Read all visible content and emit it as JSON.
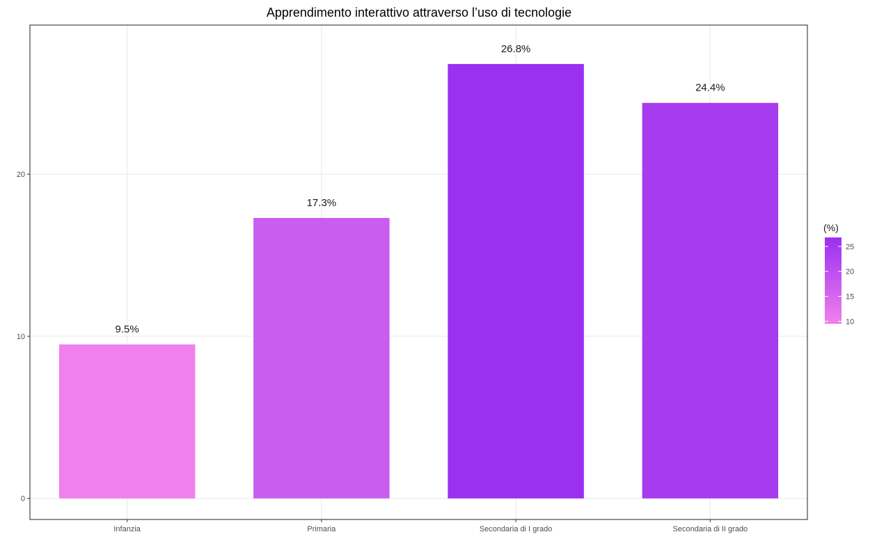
{
  "chart_data": {
    "type": "bar",
    "title": "Apprendimento interattivo attraverso l’uso di tecnologie",
    "xlabel": "",
    "ylabel": "",
    "categories": [
      "Infanzia",
      "Primaria",
      "Secondaria di I grado",
      "Secondaria di II grado"
    ],
    "values": [
      9.5,
      17.3,
      26.8,
      24.4
    ],
    "data_labels": [
      "9.5%",
      "17.3%",
      "26.8%",
      "24.4%"
    ],
    "ylim": [
      -1.3,
      29.2
    ],
    "yticks": [
      0,
      10,
      20
    ],
    "grid": true,
    "legend": {
      "title": "(%)",
      "placement": "right",
      "type": "colorbar",
      "range": [
        9.5,
        26.8
      ],
      "ticks": [
        10,
        15,
        20,
        25
      ],
      "color_low": "#f080ee",
      "color_high": "#9b30f0"
    }
  }
}
